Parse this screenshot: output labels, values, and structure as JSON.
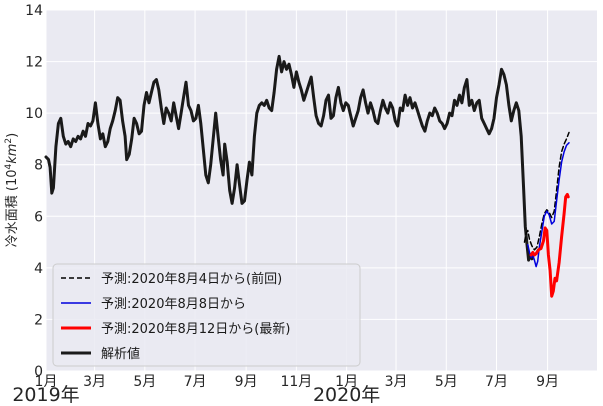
{
  "chart_data": {
    "type": "line",
    "ylabel": "冷水面積 (10⁴km²)",
    "ylabel_parts": {
      "main": "冷水面積 (10",
      "sup": "4",
      "unit": "km",
      "unit_sup": "2",
      "close": ")"
    },
    "xlim": [
      "2019-01-01",
      "2020-10-31"
    ],
    "ylim": [
      0,
      14
    ],
    "yticks": [
      0,
      2,
      4,
      6,
      8,
      10,
      12,
      14
    ],
    "grid": true,
    "legend_position": "lower-left",
    "x_ticks": [
      {
        "date": "2019-01-01",
        "label": "1月"
      },
      {
        "date": "2019-03-01",
        "label": "3月"
      },
      {
        "date": "2019-05-01",
        "label": "5月"
      },
      {
        "date": "2019-07-01",
        "label": "7月"
      },
      {
        "date": "2019-09-01",
        "label": "9月"
      },
      {
        "date": "2019-11-01",
        "label": "11月"
      },
      {
        "date": "2020-01-01",
        "label": "1月"
      },
      {
        "date": "2020-03-01",
        "label": "3月"
      },
      {
        "date": "2020-05-01",
        "label": "5月"
      },
      {
        "date": "2020-07-01",
        "label": "7月"
      },
      {
        "date": "2020-09-01",
        "label": "9月"
      }
    ],
    "year_labels": [
      {
        "date": "2019-01-01",
        "label": "2019年"
      },
      {
        "date": "2020-01-01",
        "label": "2020年"
      }
    ],
    "series": [
      {
        "name": "予測:2020年8月4日から(前回)",
        "color": "#000000",
        "style": "dashed",
        "points": [
          [
            "2020-08-04",
            5.0
          ],
          [
            "2020-08-06",
            5.35
          ],
          [
            "2020-08-08",
            5.45
          ],
          [
            "2020-08-10",
            5.1
          ],
          [
            "2020-08-13",
            4.85
          ],
          [
            "2020-08-16",
            4.7
          ],
          [
            "2020-08-19",
            4.8
          ],
          [
            "2020-08-22",
            5.2
          ],
          [
            "2020-08-25",
            5.7
          ],
          [
            "2020-08-28",
            6.1
          ],
          [
            "2020-08-31",
            6.25
          ],
          [
            "2020-09-03",
            6.15
          ],
          [
            "2020-09-06",
            5.95
          ],
          [
            "2020-09-09",
            6.2
          ],
          [
            "2020-09-12",
            7.0
          ],
          [
            "2020-09-15",
            7.9
          ],
          [
            "2020-09-18",
            8.5
          ],
          [
            "2020-09-21",
            8.8
          ],
          [
            "2020-09-24",
            9.0
          ],
          [
            "2020-09-27",
            9.25
          ]
        ]
      },
      {
        "name": "予測:2020年8月8日から",
        "color": "#0000dd",
        "style": "solid",
        "points": [
          [
            "2020-08-08",
            4.9
          ],
          [
            "2020-08-10",
            4.6
          ],
          [
            "2020-08-12",
            4.4
          ],
          [
            "2020-08-14",
            4.5
          ],
          [
            "2020-08-16",
            4.3
          ],
          [
            "2020-08-18",
            4.05
          ],
          [
            "2020-08-20",
            4.25
          ],
          [
            "2020-08-22",
            4.8
          ],
          [
            "2020-08-25",
            5.4
          ],
          [
            "2020-08-28",
            6.0
          ],
          [
            "2020-08-31",
            6.2
          ],
          [
            "2020-09-03",
            6.05
          ],
          [
            "2020-09-06",
            5.7
          ],
          [
            "2020-09-09",
            5.8
          ],
          [
            "2020-09-12",
            6.6
          ],
          [
            "2020-09-15",
            7.4
          ],
          [
            "2020-09-18",
            8.1
          ],
          [
            "2020-09-21",
            8.5
          ],
          [
            "2020-09-24",
            8.75
          ],
          [
            "2020-09-27",
            8.85
          ]
        ]
      },
      {
        "name": "予測:2020年8月12日から(最新)",
        "color": "#ff0000",
        "style": "solid",
        "points": [
          [
            "2020-08-12",
            4.5
          ],
          [
            "2020-08-14",
            4.6
          ],
          [
            "2020-08-16",
            4.5
          ],
          [
            "2020-08-18",
            4.55
          ],
          [
            "2020-08-21",
            4.7
          ],
          [
            "2020-08-24",
            4.75
          ],
          [
            "2020-08-27",
            5.05
          ],
          [
            "2020-08-29",
            5.55
          ],
          [
            "2020-08-31",
            5.45
          ],
          [
            "2020-09-02",
            4.5
          ],
          [
            "2020-09-04",
            3.9
          ],
          [
            "2020-09-06",
            2.9
          ],
          [
            "2020-09-08",
            3.1
          ],
          [
            "2020-09-10",
            3.6
          ],
          [
            "2020-09-12",
            3.5
          ],
          [
            "2020-09-15",
            4.2
          ],
          [
            "2020-09-18",
            5.2
          ],
          [
            "2020-09-21",
            6.1
          ],
          [
            "2020-09-23",
            6.75
          ],
          [
            "2020-09-25",
            6.85
          ],
          [
            "2020-09-26",
            6.75
          ]
        ]
      },
      {
        "name": "解析値",
        "color": "#1a1a1a",
        "style": "solid",
        "points": [
          [
            "2019-01-01",
            8.3
          ],
          [
            "2019-01-04",
            8.2
          ],
          [
            "2019-01-06",
            7.9
          ],
          [
            "2019-01-08",
            6.9
          ],
          [
            "2019-01-10",
            7.1
          ],
          [
            "2019-01-13",
            8.7
          ],
          [
            "2019-01-16",
            9.6
          ],
          [
            "2019-01-19",
            9.8
          ],
          [
            "2019-01-22",
            9.1
          ],
          [
            "2019-01-25",
            8.8
          ],
          [
            "2019-01-28",
            8.9
          ],
          [
            "2019-01-31",
            8.7
          ],
          [
            "2019-02-03",
            9.0
          ],
          [
            "2019-02-06",
            8.9
          ],
          [
            "2019-02-09",
            9.1
          ],
          [
            "2019-02-12",
            9.0
          ],
          [
            "2019-02-15",
            9.3
          ],
          [
            "2019-02-18",
            9.1
          ],
          [
            "2019-02-21",
            9.6
          ],
          [
            "2019-02-24",
            9.5
          ],
          [
            "2019-02-27",
            9.7
          ],
          [
            "2019-03-02",
            10.4
          ],
          [
            "2019-03-05",
            9.6
          ],
          [
            "2019-03-08",
            9.0
          ],
          [
            "2019-03-11",
            9.2
          ],
          [
            "2019-03-14",
            8.7
          ],
          [
            "2019-03-17",
            8.9
          ],
          [
            "2019-03-20",
            9.4
          ],
          [
            "2019-03-23",
            9.7
          ],
          [
            "2019-03-26",
            10.1
          ],
          [
            "2019-03-29",
            10.6
          ],
          [
            "2019-04-01",
            10.5
          ],
          [
            "2019-04-04",
            9.7
          ],
          [
            "2019-04-07",
            9.1
          ],
          [
            "2019-04-09",
            8.2
          ],
          [
            "2019-04-12",
            8.4
          ],
          [
            "2019-04-15",
            9.0
          ],
          [
            "2019-04-18",
            9.8
          ],
          [
            "2019-04-21",
            9.6
          ],
          [
            "2019-04-24",
            9.2
          ],
          [
            "2019-04-27",
            9.3
          ],
          [
            "2019-04-30",
            10.3
          ],
          [
            "2019-05-03",
            10.8
          ],
          [
            "2019-05-06",
            10.4
          ],
          [
            "2019-05-09",
            10.8
          ],
          [
            "2019-05-12",
            11.2
          ],
          [
            "2019-05-15",
            11.3
          ],
          [
            "2019-05-18",
            10.9
          ],
          [
            "2019-05-21",
            10.2
          ],
          [
            "2019-05-24",
            9.6
          ],
          [
            "2019-05-27",
            10.2
          ],
          [
            "2019-05-30",
            10.0
          ],
          [
            "2019-06-02",
            9.7
          ],
          [
            "2019-06-05",
            10.4
          ],
          [
            "2019-06-08",
            9.9
          ],
          [
            "2019-06-11",
            9.4
          ],
          [
            "2019-06-14",
            10.0
          ],
          [
            "2019-06-17",
            10.6
          ],
          [
            "2019-06-20",
            11.2
          ],
          [
            "2019-06-23",
            10.3
          ],
          [
            "2019-06-26",
            10.1
          ],
          [
            "2019-06-29",
            9.7
          ],
          [
            "2019-07-02",
            9.8
          ],
          [
            "2019-07-05",
            10.3
          ],
          [
            "2019-07-08",
            9.6
          ],
          [
            "2019-07-11",
            8.6
          ],
          [
            "2019-07-14",
            7.6
          ],
          [
            "2019-07-17",
            7.3
          ],
          [
            "2019-07-20",
            8.0
          ],
          [
            "2019-07-23",
            9.0
          ],
          [
            "2019-07-26",
            10.0
          ],
          [
            "2019-07-29",
            9.1
          ],
          [
            "2019-08-01",
            8.2
          ],
          [
            "2019-08-04",
            7.6
          ],
          [
            "2019-08-06",
            8.8
          ],
          [
            "2019-08-09",
            8.1
          ],
          [
            "2019-08-12",
            7.0
          ],
          [
            "2019-08-15",
            6.5
          ],
          [
            "2019-08-18",
            7.1
          ],
          [
            "2019-08-21",
            8.0
          ],
          [
            "2019-08-24",
            7.2
          ],
          [
            "2019-08-27",
            6.5
          ],
          [
            "2019-08-30",
            6.6
          ],
          [
            "2019-09-02",
            7.4
          ],
          [
            "2019-09-05",
            8.1
          ],
          [
            "2019-09-08",
            7.6
          ],
          [
            "2019-09-11",
            9.1
          ],
          [
            "2019-09-14",
            10.0
          ],
          [
            "2019-09-17",
            10.3
          ],
          [
            "2019-09-20",
            10.4
          ],
          [
            "2019-09-23",
            10.3
          ],
          [
            "2019-09-26",
            10.5
          ],
          [
            "2019-09-29",
            10.2
          ],
          [
            "2019-10-02",
            10.1
          ],
          [
            "2019-10-05",
            10.8
          ],
          [
            "2019-10-08",
            11.7
          ],
          [
            "2019-10-11",
            12.2
          ],
          [
            "2019-10-14",
            11.6
          ],
          [
            "2019-10-17",
            12.0
          ],
          [
            "2019-10-20",
            11.7
          ],
          [
            "2019-10-23",
            11.9
          ],
          [
            "2019-10-26",
            11.5
          ],
          [
            "2019-10-29",
            11.0
          ],
          [
            "2019-11-01",
            11.6
          ],
          [
            "2019-11-04",
            11.2
          ],
          [
            "2019-11-07",
            10.9
          ],
          [
            "2019-11-10",
            10.5
          ],
          [
            "2019-11-13",
            10.8
          ],
          [
            "2019-11-16",
            11.1
          ],
          [
            "2019-11-19",
            11.4
          ],
          [
            "2019-11-22",
            10.6
          ],
          [
            "2019-11-25",
            9.9
          ],
          [
            "2019-11-28",
            9.6
          ],
          [
            "2019-12-01",
            9.5
          ],
          [
            "2019-12-04",
            9.9
          ],
          [
            "2019-12-07",
            10.5
          ],
          [
            "2019-12-10",
            10.7
          ],
          [
            "2019-12-13",
            9.8
          ],
          [
            "2019-12-16",
            9.9
          ],
          [
            "2019-12-19",
            10.6
          ],
          [
            "2019-12-22",
            11.0
          ],
          [
            "2019-12-25",
            10.4
          ],
          [
            "2019-12-28",
            10.1
          ],
          [
            "2019-12-31",
            10.4
          ],
          [
            "2020-01-03",
            10.3
          ],
          [
            "2020-01-06",
            9.9
          ],
          [
            "2020-01-09",
            9.5
          ],
          [
            "2020-01-12",
            9.8
          ],
          [
            "2020-01-15",
            10.1
          ],
          [
            "2020-01-18",
            10.6
          ],
          [
            "2020-01-21",
            10.9
          ],
          [
            "2020-01-24",
            10.4
          ],
          [
            "2020-01-27",
            10.0
          ],
          [
            "2020-01-30",
            10.4
          ],
          [
            "2020-02-02",
            10.1
          ],
          [
            "2020-02-05",
            9.7
          ],
          [
            "2020-02-08",
            9.6
          ],
          [
            "2020-02-11",
            10.1
          ],
          [
            "2020-02-14",
            10.5
          ],
          [
            "2020-02-17",
            10.2
          ],
          [
            "2020-02-20",
            10.0
          ],
          [
            "2020-02-23",
            10.4
          ],
          [
            "2020-02-26",
            10.2
          ],
          [
            "2020-02-29",
            9.7
          ],
          [
            "2020-03-03",
            9.5
          ],
          [
            "2020-03-06",
            10.2
          ],
          [
            "2020-03-09",
            10.1
          ],
          [
            "2020-03-12",
            10.7
          ],
          [
            "2020-03-15",
            10.3
          ],
          [
            "2020-03-18",
            10.6
          ],
          [
            "2020-03-21",
            10.2
          ],
          [
            "2020-03-24",
            10.4
          ],
          [
            "2020-03-27",
            10.1
          ],
          [
            "2020-03-30",
            9.8
          ],
          [
            "2020-04-02",
            9.5
          ],
          [
            "2020-04-05",
            9.3
          ],
          [
            "2020-04-08",
            9.7
          ],
          [
            "2020-04-11",
            10.0
          ],
          [
            "2020-04-14",
            9.9
          ],
          [
            "2020-04-17",
            10.2
          ],
          [
            "2020-04-20",
            10.0
          ],
          [
            "2020-04-23",
            9.7
          ],
          [
            "2020-04-26",
            9.6
          ],
          [
            "2020-04-29",
            9.4
          ],
          [
            "2020-05-02",
            9.6
          ],
          [
            "2020-05-05",
            10.0
          ],
          [
            "2020-05-08",
            9.9
          ],
          [
            "2020-05-11",
            10.5
          ],
          [
            "2020-05-14",
            10.3
          ],
          [
            "2020-05-17",
            10.7
          ],
          [
            "2020-05-20",
            10.4
          ],
          [
            "2020-05-23",
            11.0
          ],
          [
            "2020-05-26",
            11.3
          ],
          [
            "2020-05-29",
            10.3
          ],
          [
            "2020-06-01",
            10.5
          ],
          [
            "2020-06-04",
            10.1
          ],
          [
            "2020-06-07",
            10.4
          ],
          [
            "2020-06-10",
            10.5
          ],
          [
            "2020-06-13",
            9.8
          ],
          [
            "2020-06-16",
            9.6
          ],
          [
            "2020-06-19",
            9.4
          ],
          [
            "2020-06-22",
            9.2
          ],
          [
            "2020-06-25",
            9.4
          ],
          [
            "2020-06-28",
            9.8
          ],
          [
            "2020-07-01",
            10.6
          ],
          [
            "2020-07-04",
            11.1
          ],
          [
            "2020-07-07",
            11.7
          ],
          [
            "2020-07-10",
            11.5
          ],
          [
            "2020-07-13",
            11.1
          ],
          [
            "2020-07-16",
            10.3
          ],
          [
            "2020-07-19",
            9.7
          ],
          [
            "2020-07-22",
            10.1
          ],
          [
            "2020-07-25",
            10.4
          ],
          [
            "2020-07-28",
            10.1
          ],
          [
            "2020-07-31",
            9.1
          ],
          [
            "2020-08-03",
            7.0
          ],
          [
            "2020-08-05",
            5.6
          ],
          [
            "2020-08-07",
            4.9
          ],
          [
            "2020-08-09",
            4.3
          ],
          [
            "2020-08-11",
            4.5
          ],
          [
            "2020-08-13",
            4.35
          ]
        ]
      }
    ]
  }
}
